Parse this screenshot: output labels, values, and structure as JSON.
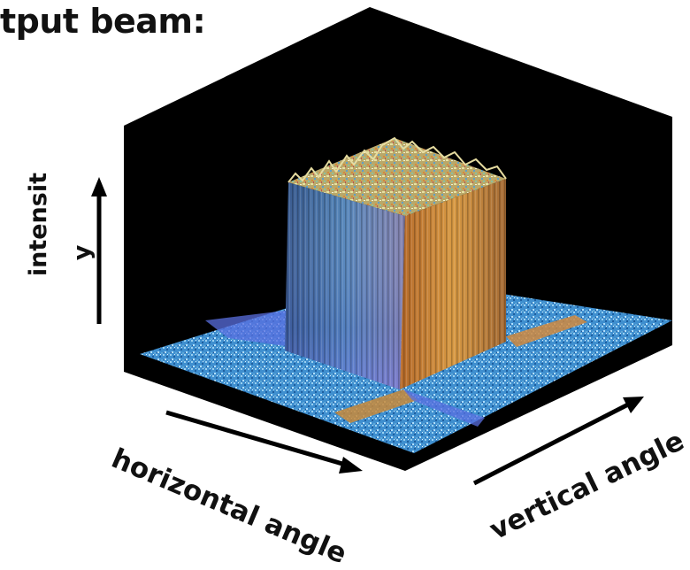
{
  "title": "tput beam:",
  "axes": {
    "intensity_label": "intensit",
    "intensity_label_tail": "y",
    "horizontal_label": "horizontal angle",
    "vertical_label": "vertical angle"
  },
  "colors": {
    "background_box": "#000000",
    "floor_blue": "#3a8fd0",
    "front_face_blue": "#3f6fa8",
    "right_face_orange": "#c98a3a",
    "top_noise": "#d8d28a"
  }
}
